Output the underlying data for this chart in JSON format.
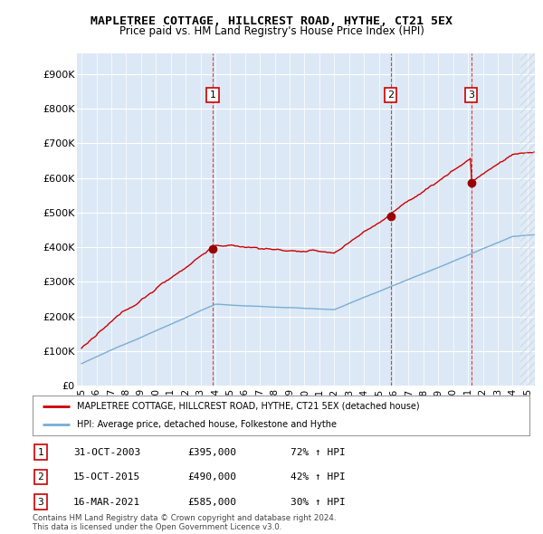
{
  "title": "MAPLETREE COTTAGE, HILLCREST ROAD, HYTHE, CT21 5EX",
  "subtitle": "Price paid vs. HM Land Registry's House Price Index (HPI)",
  "legend_label_red": "MAPLETREE COTTAGE, HILLCREST ROAD, HYTHE, CT21 5EX (detached house)",
  "legend_label_blue": "HPI: Average price, detached house, Folkestone and Hythe",
  "transactions": [
    {
      "num": 1,
      "date": "31-OCT-2003",
      "price": 395000,
      "pct": "72%",
      "x_year": 2003.83
    },
    {
      "num": 2,
      "date": "15-OCT-2015",
      "price": 490000,
      "pct": "42%",
      "x_year": 2015.79
    },
    {
      "num": 3,
      "date": "16-MAR-2021",
      "price": 585000,
      "pct": "30%",
      "x_year": 2021.21
    }
  ],
  "table_rows": [
    [
      "1",
      "31-OCT-2003",
      "£395,000",
      "72% ↑ HPI"
    ],
    [
      "2",
      "15-OCT-2015",
      "£490,000",
      "42% ↑ HPI"
    ],
    [
      "3",
      "16-MAR-2021",
      "£585,000",
      "30% ↑ HPI"
    ]
  ],
  "footer": "Contains HM Land Registry data © Crown copyright and database right 2024.\nThis data is licensed under the Open Government Licence v3.0.",
  "ylabel_ticks": [
    "£0",
    "£100K",
    "£200K",
    "£300K",
    "£400K",
    "£500K",
    "£600K",
    "£700K",
    "£800K",
    "£900K"
  ],
  "ytick_vals": [
    0,
    100000,
    200000,
    300000,
    400000,
    500000,
    600000,
    700000,
    800000,
    900000
  ],
  "ylim": [
    0,
    960000
  ],
  "xlim_start": 1994.7,
  "xlim_end": 2025.5,
  "red_color": "#cc0000",
  "blue_color": "#7aadd4",
  "dashed_color": "#cc3333",
  "background_color": "#ffffff",
  "plot_bg_color": "#dce8f5",
  "grid_color": "#ffffff"
}
